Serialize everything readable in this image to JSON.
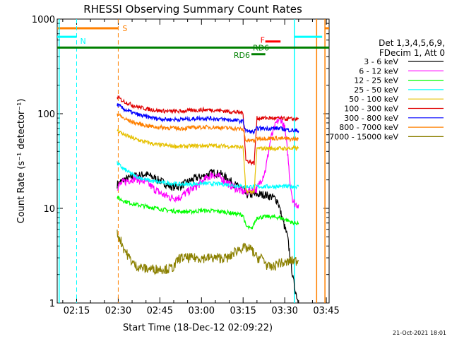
{
  "chart_data": {
    "type": "line",
    "title": "RHESSI Observing Summary Count Rates",
    "xlabel": "Start Time (18-Dec-12 02:09:22)",
    "ylabel": "Count Rate (s⁻¹ detector⁻¹)",
    "y_scale": "log",
    "ylim": [
      1,
      1000
    ],
    "xlim_minutes": [
      128,
      226
    ],
    "x_ticks": [
      {
        "label": "02:15",
        "min": 135
      },
      {
        "label": "02:30",
        "min": 150
      },
      {
        "label": "02:45",
        "min": 165
      },
      {
        "label": "03:00",
        "min": 180
      },
      {
        "label": "03:15",
        "min": 195
      },
      {
        "label": "03:30",
        "min": 210
      },
      {
        "label": "03:45",
        "min": 225
      }
    ],
    "y_ticks": [
      {
        "label": "1",
        "value": 1
      },
      {
        "label": "10",
        "value": 10
      },
      {
        "label": "100",
        "value": 100
      },
      {
        "label": "1000",
        "value": 1000
      }
    ],
    "legend": {
      "header1": "Det 1,3,4,5,6,9,",
      "header2": "FDecim 1, Att 0",
      "position": "right"
    },
    "series": [
      {
        "name": "3 - 6 keV",
        "color": "#000000",
        "points": [
          [
            149.6,
            18
          ],
          [
            152,
            20
          ],
          [
            156,
            22
          ],
          [
            160,
            23
          ],
          [
            163,
            21
          ],
          [
            166,
            19
          ],
          [
            169,
            17
          ],
          [
            172,
            17
          ],
          [
            175,
            19
          ],
          [
            178,
            21
          ],
          [
            181,
            22
          ],
          [
            184,
            24
          ],
          [
            187,
            23
          ],
          [
            190,
            20
          ],
          [
            193,
            17
          ],
          [
            195,
            16
          ],
          [
            196,
            14
          ],
          [
            200,
            14
          ],
          [
            203,
            14
          ],
          [
            206,
            13
          ],
          [
            207.5,
            12
          ],
          [
            209,
            8
          ],
          [
            211,
            5
          ],
          [
            212,
            3
          ],
          [
            213,
            1.8
          ],
          [
            214,
            1.3
          ],
          [
            215,
            1
          ]
        ]
      },
      {
        "name": "6 - 12 keV",
        "color": "#ff00ff",
        "points": [
          [
            149.6,
            17
          ],
          [
            152,
            19
          ],
          [
            156,
            21
          ],
          [
            160,
            19
          ],
          [
            163,
            16
          ],
          [
            166,
            14
          ],
          [
            169,
            13
          ],
          [
            172,
            13
          ],
          [
            175,
            15
          ],
          [
            178,
            17
          ],
          [
            181,
            20
          ],
          [
            184,
            23
          ],
          [
            187,
            21
          ],
          [
            190,
            18
          ],
          [
            193,
            16
          ],
          [
            195,
            15
          ],
          [
            196,
            15
          ],
          [
            200,
            16
          ],
          [
            203,
            25
          ],
          [
            205,
            55
          ],
          [
            207,
            80
          ],
          [
            208.5,
            90
          ],
          [
            210,
            70
          ],
          [
            211,
            40
          ],
          [
            212,
            18
          ],
          [
            213,
            12
          ],
          [
            214,
            11
          ],
          [
            215,
            11
          ]
        ]
      },
      {
        "name": "12 - 25 keV",
        "color": "#00ff00",
        "points": [
          [
            149.6,
            13
          ],
          [
            152,
            12
          ],
          [
            156,
            11
          ],
          [
            160,
            10.5
          ],
          [
            164,
            10
          ],
          [
            168,
            9.5
          ],
          [
            172,
            9.3
          ],
          [
            176,
            9.2
          ],
          [
            180,
            9.5
          ],
          [
            184,
            9.4
          ],
          [
            188,
            9.2
          ],
          [
            192,
            8.8
          ],
          [
            195,
            8.5
          ],
          [
            196,
            6.5
          ],
          [
            198,
            6
          ],
          [
            200,
            8
          ],
          [
            204,
            8.2
          ],
          [
            208,
            8
          ],
          [
            211,
            7.5
          ],
          [
            213,
            7
          ],
          [
            215,
            7
          ]
        ]
      },
      {
        "name": "25 - 50 keV",
        "color": "#00ffff",
        "points": [
          [
            149.6,
            30
          ],
          [
            152,
            26
          ],
          [
            156,
            22
          ],
          [
            160,
            20
          ],
          [
            164,
            19
          ],
          [
            168,
            18.5
          ],
          [
            172,
            18
          ],
          [
            176,
            18
          ],
          [
            180,
            18.3
          ],
          [
            184,
            18.2
          ],
          [
            188,
            18
          ],
          [
            192,
            17.5
          ],
          [
            195,
            17
          ],
          [
            196,
            17
          ],
          [
            200,
            17
          ],
          [
            204,
            17
          ],
          [
            208,
            17
          ],
          [
            212,
            17
          ],
          [
            215,
            17
          ]
        ]
      },
      {
        "name": "50 - 100 keV",
        "color": "#e6c000",
        "points": [
          [
            149.6,
            68
          ],
          [
            152,
            60
          ],
          [
            156,
            54
          ],
          [
            160,
            50
          ],
          [
            164,
            47
          ],
          [
            168,
            46
          ],
          [
            172,
            45
          ],
          [
            176,
            45.5
          ],
          [
            180,
            46
          ],
          [
            184,
            46
          ],
          [
            188,
            45.5
          ],
          [
            192,
            45
          ],
          [
            195,
            44
          ],
          [
            196,
            15
          ],
          [
            199,
            15
          ],
          [
            200,
            43
          ],
          [
            204,
            43
          ],
          [
            208,
            43
          ],
          [
            212,
            43
          ],
          [
            215,
            43
          ]
        ]
      },
      {
        "name": "100 - 300 keV",
        "color": "#e00000",
        "points": [
          [
            149.6,
            150
          ],
          [
            152,
            135
          ],
          [
            156,
            120
          ],
          [
            160,
            113
          ],
          [
            164,
            108
          ],
          [
            168,
            106
          ],
          [
            172,
            106
          ],
          [
            176,
            108
          ],
          [
            180,
            110
          ],
          [
            184,
            110
          ],
          [
            188,
            107
          ],
          [
            192,
            104
          ],
          [
            195,
            102
          ],
          [
            196,
            32
          ],
          [
            199,
            30
          ],
          [
            200,
            90
          ],
          [
            204,
            90
          ],
          [
            208,
            89
          ],
          [
            212,
            88
          ],
          [
            215,
            88
          ]
        ]
      },
      {
        "name": "300 - 800 keV",
        "color": "#0000ff",
        "points": [
          [
            149.6,
            125
          ],
          [
            152,
            112
          ],
          [
            156,
            100
          ],
          [
            160,
            93
          ],
          [
            164,
            89
          ],
          [
            168,
            87
          ],
          [
            172,
            87
          ],
          [
            176,
            88
          ],
          [
            180,
            90
          ],
          [
            184,
            89
          ],
          [
            188,
            87
          ],
          [
            192,
            85
          ],
          [
            195,
            83
          ],
          [
            196,
            66
          ],
          [
            199,
            64
          ],
          [
            200,
            70
          ],
          [
            204,
            70
          ],
          [
            208,
            70
          ],
          [
            212,
            67
          ],
          [
            215,
            66
          ]
        ]
      },
      {
        "name": "800 - 7000 keV",
        "color": "#ff8000",
        "points": [
          [
            149.6,
            100
          ],
          [
            152,
            89
          ],
          [
            156,
            80
          ],
          [
            160,
            75
          ],
          [
            164,
            72
          ],
          [
            168,
            71
          ],
          [
            172,
            70
          ],
          [
            176,
            71
          ],
          [
            180,
            72
          ],
          [
            184,
            72
          ],
          [
            188,
            71
          ],
          [
            192,
            70
          ],
          [
            195,
            68
          ],
          [
            196,
            52
          ],
          [
            199,
            52
          ],
          [
            200,
            55
          ],
          [
            204,
            55
          ],
          [
            208,
            55
          ],
          [
            212,
            54
          ],
          [
            215,
            54
          ]
        ]
      },
      {
        "name": "7000 - 15000 keV",
        "color": "#8b8000",
        "points": [
          [
            149.6,
            5.5
          ],
          [
            151,
            4.5
          ],
          [
            152,
            3.8
          ],
          [
            154,
            3
          ],
          [
            156,
            2.5
          ],
          [
            158,
            2.4
          ],
          [
            160,
            2.3
          ],
          [
            162,
            2.3
          ],
          [
            164,
            2.3
          ],
          [
            166,
            2.3
          ],
          [
            168,
            2.3
          ],
          [
            170,
            2.4
          ],
          [
            172,
            3
          ],
          [
            174,
            3
          ],
          [
            176,
            3
          ],
          [
            178,
            3
          ],
          [
            180,
            3
          ],
          [
            182,
            3
          ],
          [
            184,
            3
          ],
          [
            186,
            3
          ],
          [
            188,
            3
          ],
          [
            190,
            3
          ],
          [
            192,
            3.5
          ],
          [
            194,
            3.8
          ],
          [
            196,
            3.8
          ],
          [
            198,
            3.7
          ],
          [
            200,
            3
          ],
          [
            202,
            3
          ],
          [
            204,
            2.4
          ],
          [
            206,
            2.4
          ],
          [
            208,
            2.7
          ],
          [
            210,
            2.6
          ],
          [
            212,
            2.8
          ],
          [
            214,
            2.8
          ],
          [
            215,
            2.8
          ]
        ]
      }
    ],
    "indicators": [
      {
        "label": "S",
        "color": "#ff8000",
        "segments": [
          [
            128,
            150
          ]
        ],
        "value": 800,
        "vline_dashed": [
          150
        ],
        "vline_solid": [
          221.5,
          224.5
        ]
      },
      {
        "label": "N",
        "color": "#00ffff",
        "segments": [
          [
            128,
            135
          ]
        ],
        "value": 650,
        "vline_dashed": [
          135
        ],
        "vline_solid": [
          128.7,
          213.5
        ]
      },
      {
        "label": "RD6",
        "color": "#008000",
        "segments": [
          [
            128,
            226
          ]
        ],
        "value": 500
      },
      {
        "label": "RD6",
        "color": "#008000",
        "segments": [
          [
            198,
            203
          ]
        ],
        "value": 425
      },
      {
        "label": "F",
        "color": "#ff0000",
        "segments": [
          [
            203,
            208.5
          ]
        ],
        "value": 580
      }
    ],
    "cyan_right_segments": [
      [
        213.5,
        223.5
      ]
    ],
    "orange_right_segment": [
      224.5,
      226
    ]
  },
  "footer": {
    "timestamp": "21-Oct-2021 18:01"
  }
}
